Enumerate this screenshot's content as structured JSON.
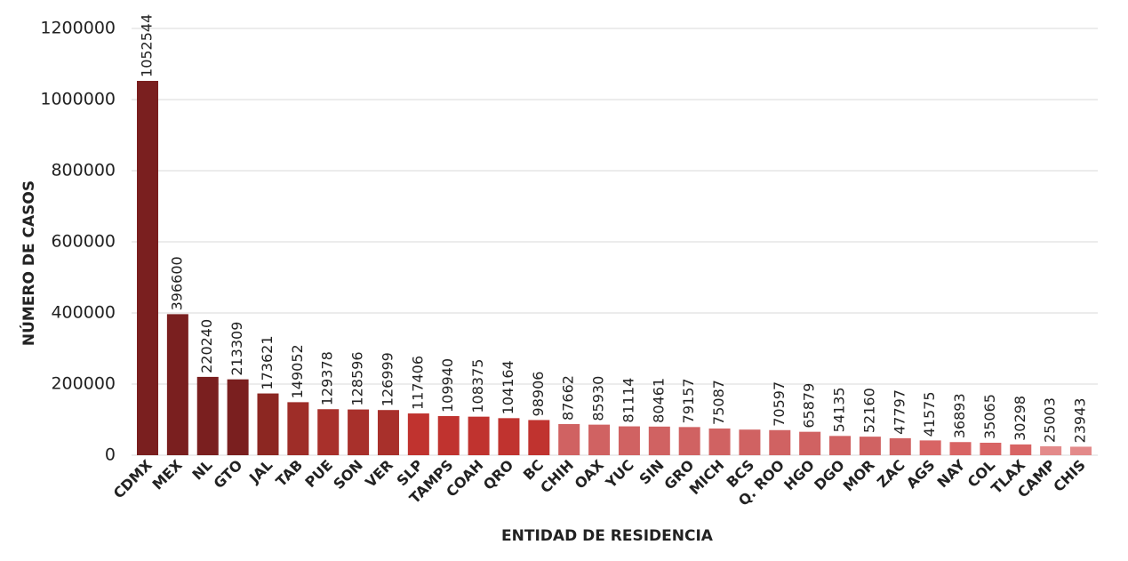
{
  "chart_data": {
    "type": "bar",
    "x_label": "ENTIDAD DE RESIDENCIA",
    "y_label": "NÚMERO DE CASOS",
    "categories": [
      "CDMX",
      "MEX",
      "NL",
      "GTO",
      "JAL",
      "TAB",
      "PUE",
      "SON",
      "VER",
      "SLP",
      "TAMPS",
      "COAH",
      "QRO",
      "BC",
      "CHIH",
      "OAX",
      "YUC",
      "SIN",
      "GRO",
      "MICH",
      "BCS",
      "Q. ROO",
      "HGO",
      "DGO",
      "MOR",
      "ZAC",
      "AGS",
      "NAY",
      "COL",
      "TLAX",
      "CAMP",
      "CHIS"
    ],
    "values": [
      1052544,
      396600,
      220240,
      213309,
      173621,
      149052,
      129378,
      128596,
      126999,
      117406,
      109940,
      108375,
      104164,
      98906,
      87662,
      85930,
      81114,
      80461,
      79157,
      75087,
      72000,
      70597,
      65879,
      54135,
      52160,
      47797,
      41575,
      36893,
      35065,
      30298,
      25003,
      23943
    ],
    "value_labels": [
      "1052544",
      "396600",
      "220240",
      "213309",
      "173621",
      "149052",
      "129378",
      "128596",
      "126999",
      "117406",
      "109940",
      "108375",
      "104164",
      "98906",
      "87662",
      "85930",
      "81114",
      "80461",
      "79157",
      "75087",
      null,
      "70597",
      "65879",
      "54135",
      "52160",
      "47797",
      "41575",
      "36893",
      "35065",
      "30298",
      "25003",
      "23943"
    ],
    "colors": [
      "#7a1f1f",
      "#7a1f1f",
      "#7a1f1f",
      "#7a1f1f",
      "#8c2722",
      "#9e2d28",
      "#a8302b",
      "#a8302b",
      "#a8302b",
      "#c0332f",
      "#c0332f",
      "#c0332f",
      "#c0332f",
      "#c0332f",
      "#d06262",
      "#d06262",
      "#d06262",
      "#d06262",
      "#d06262",
      "#d06262",
      "#d06262",
      "#d06262",
      "#d06262",
      "#d06262",
      "#d06262",
      "#d06262",
      "#d86464",
      "#d86464",
      "#d86464",
      "#d86464",
      "#e38a8a",
      "#e38a8a"
    ],
    "ylim": [
      0,
      1200000
    ],
    "yticks": [
      0,
      200000,
      400000,
      600000,
      800000,
      1000000,
      1200000
    ],
    "grid": true
  }
}
